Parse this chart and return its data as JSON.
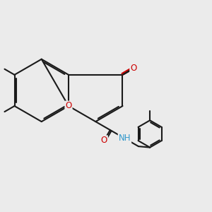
{
  "bg_color": "#ebebeb",
  "bond_color": "#1a1a1a",
  "bond_width": 1.5,
  "dbo": 0.07,
  "font_size": 8.5,
  "O_color": "#cc0000",
  "N_color": "#3399cc",
  "C_color": "#1a1a1a",
  "xlim": [
    0,
    10
  ],
  "ylim": [
    0,
    10
  ]
}
